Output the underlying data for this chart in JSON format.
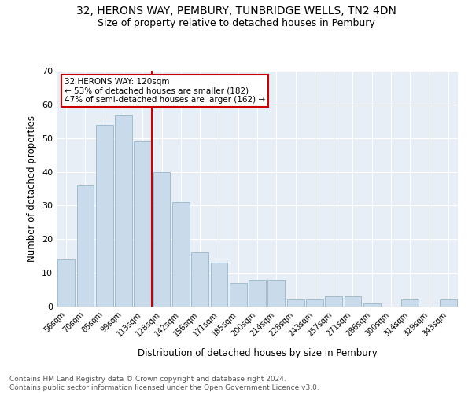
{
  "title1": "32, HERONS WAY, PEMBURY, TUNBRIDGE WELLS, TN2 4DN",
  "title2": "Size of property relative to detached houses in Pembury",
  "xlabel": "Distribution of detached houses by size in Pembury",
  "ylabel": "Number of detached properties",
  "categories": [
    "56sqm",
    "70sqm",
    "85sqm",
    "99sqm",
    "113sqm",
    "128sqm",
    "142sqm",
    "156sqm",
    "171sqm",
    "185sqm",
    "200sqm",
    "214sqm",
    "228sqm",
    "243sqm",
    "257sqm",
    "271sqm",
    "286sqm",
    "300sqm",
    "314sqm",
    "329sqm",
    "343sqm"
  ],
  "values": [
    14,
    36,
    54,
    57,
    49,
    40,
    31,
    16,
    13,
    7,
    8,
    8,
    2,
    2,
    3,
    3,
    1,
    0,
    2,
    0,
    2
  ],
  "bar_color": "#c9daea",
  "bar_edge_color": "#a0bcd0",
  "vline_x": 4.5,
  "vline_color": "#cc0000",
  "annotation_text": "32 HERONS WAY: 120sqm\n← 53% of detached houses are smaller (182)\n47% of semi-detached houses are larger (162) →",
  "annotation_box_color": "#ffffff",
  "annotation_box_edge_color": "#cc0000",
  "ylim": [
    0,
    70
  ],
  "yticks": [
    0,
    10,
    20,
    30,
    40,
    50,
    60,
    70
  ],
  "bg_color": "#e8eef5",
  "footer_text": "Contains HM Land Registry data © Crown copyright and database right 2024.\nContains public sector information licensed under the Open Government Licence v3.0.",
  "title1_fontsize": 10,
  "title2_fontsize": 9,
  "xlabel_fontsize": 8.5,
  "ylabel_fontsize": 8.5,
  "annotation_fontsize": 7.5,
  "footer_fontsize": 6.5
}
